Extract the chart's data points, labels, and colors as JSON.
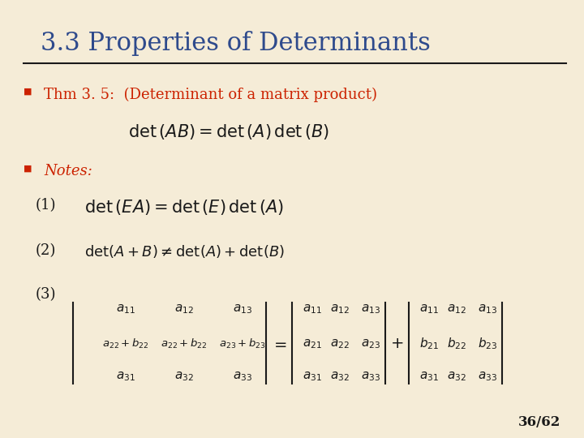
{
  "bg_color": "#f5ecd7",
  "title": "3.3 Properties of Determinants",
  "title_color": "#2e4a8c",
  "title_fontsize": 22,
  "separator_color": "#1a1a1a",
  "bullet_color": "#cc2200",
  "text_color": "#1a1a1a",
  "red_color": "#cc2200",
  "page_num": "36/62",
  "page_color": "#1a1a1a"
}
